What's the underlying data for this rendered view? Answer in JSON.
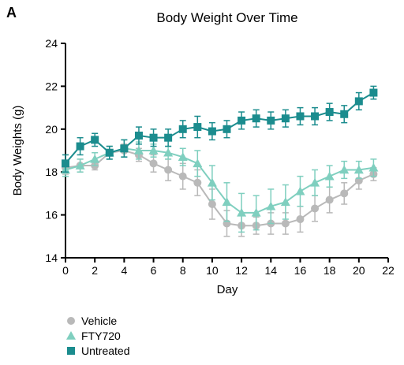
{
  "panel_letter": "A",
  "chart_data": {
    "type": "line",
    "title": "Body Weight Over Time",
    "xlabel": "Day",
    "ylabel": "Body Weights (g)",
    "xlim": [
      0,
      22
    ],
    "ylim": [
      14,
      24
    ],
    "xticks": [
      0,
      2,
      4,
      6,
      8,
      10,
      12,
      14,
      16,
      18,
      20,
      22
    ],
    "yticks": [
      14,
      16,
      18,
      20,
      22,
      24
    ],
    "grid": false,
    "legend_position": "bottom-left",
    "x": [
      0,
      1,
      2,
      3,
      4,
      5,
      6,
      7,
      8,
      9,
      10,
      11,
      12,
      13,
      14,
      15,
      16,
      17,
      18,
      19,
      20,
      21
    ],
    "series": [
      {
        "name": "Vehicle",
        "marker": "circle",
        "color": "#b9b9b9",
        "values": [
          18.2,
          18.3,
          18.3,
          18.9,
          19.0,
          18.8,
          18.4,
          18.1,
          17.8,
          17.5,
          16.5,
          15.6,
          15.5,
          15.5,
          15.6,
          15.6,
          15.8,
          16.3,
          16.7,
          17.0,
          17.6,
          17.9
        ],
        "errors": [
          0.3,
          0.3,
          0.2,
          0.3,
          0.3,
          0.3,
          0.4,
          0.5,
          0.6,
          0.6,
          0.7,
          0.6,
          0.5,
          0.4,
          0.5,
          0.5,
          0.6,
          0.6,
          0.6,
          0.5,
          0.4,
          0.3
        ]
      },
      {
        "name": "FTY720",
        "marker": "triangle",
        "color": "#7fcfbf",
        "values": [
          18.1,
          18.3,
          18.6,
          18.9,
          19.1,
          19.0,
          19.0,
          18.9,
          18.7,
          18.4,
          17.5,
          16.6,
          16.1,
          16.1,
          16.4,
          16.6,
          17.1,
          17.5,
          17.8,
          18.1,
          18.1,
          18.2
        ],
        "errors": [
          0.3,
          0.3,
          0.3,
          0.3,
          0.4,
          0.4,
          0.3,
          0.3,
          0.4,
          0.6,
          0.8,
          0.9,
          0.9,
          0.8,
          0.8,
          0.8,
          0.7,
          0.6,
          0.5,
          0.4,
          0.4,
          0.4
        ]
      },
      {
        "name": "Untreated",
        "marker": "square",
        "color": "#1b8c8e",
        "values": [
          18.4,
          19.2,
          19.5,
          18.9,
          19.1,
          19.7,
          19.6,
          19.6,
          20.0,
          20.1,
          19.9,
          20.0,
          20.4,
          20.5,
          20.4,
          20.5,
          20.6,
          20.6,
          20.8,
          20.7,
          21.3,
          21.7
        ],
        "errors": [
          0.4,
          0.4,
          0.3,
          0.3,
          0.4,
          0.4,
          0.4,
          0.4,
          0.4,
          0.5,
          0.4,
          0.4,
          0.4,
          0.4,
          0.4,
          0.4,
          0.4,
          0.4,
          0.4,
          0.4,
          0.4,
          0.3
        ]
      }
    ]
  }
}
